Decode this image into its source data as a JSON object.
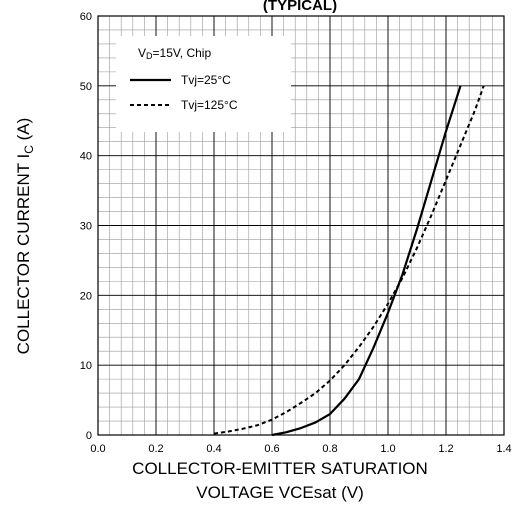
{
  "chart_data": {
    "type": "line",
    "title": "(TYPICAL)",
    "xlabel_line1": "COLLECTOR-EMITTER SATURATION",
    "xlabel_line2": "VOLTAGE VCEsat (V)",
    "ylabel": "COLLECTOR CURRENT I",
    "ylabel_sub": "C",
    "ylabel_unit": " (A)",
    "xlim": [
      0,
      1.4
    ],
    "ylim": [
      0,
      60
    ],
    "x_ticks": [
      0.0,
      0.2,
      0.4,
      0.6,
      0.8,
      1.0,
      1.2,
      1.4
    ],
    "x_tick_labels": [
      "0.0",
      "0.2",
      "0.4",
      "0.6",
      "0.8",
      "1.0",
      "1.2",
      "1.4"
    ],
    "y_ticks": [
      0,
      10,
      20,
      30,
      40,
      50,
      60
    ],
    "y_tick_labels": [
      "0",
      "10",
      "20",
      "30",
      "40",
      "50",
      "60"
    ],
    "grid": true,
    "legend": {
      "placement": "top-left",
      "header_main": "V",
      "header_sub": "D",
      "header_rest": "=15V, Chip"
    },
    "series": [
      {
        "name": "Tvj=25°C",
        "style": "solid",
        "color": "#000000",
        "points": [
          [
            0.6,
            0.0
          ],
          [
            0.65,
            0.4
          ],
          [
            0.7,
            1.0
          ],
          [
            0.75,
            1.8
          ],
          [
            0.8,
            3.0
          ],
          [
            0.85,
            5.2
          ],
          [
            0.9,
            8.0
          ],
          [
            0.95,
            12.5
          ],
          [
            1.0,
            17.5
          ],
          [
            1.05,
            23.0
          ],
          [
            1.1,
            29.5
          ],
          [
            1.15,
            36.5
          ],
          [
            1.2,
            43.5
          ],
          [
            1.25,
            50.0
          ]
        ]
      },
      {
        "name": "Tvj=125°C",
        "style": "dashed",
        "color": "#000000",
        "points": [
          [
            0.4,
            0.2
          ],
          [
            0.45,
            0.5
          ],
          [
            0.5,
            0.9
          ],
          [
            0.55,
            1.4
          ],
          [
            0.6,
            2.2
          ],
          [
            0.65,
            3.3
          ],
          [
            0.7,
            4.6
          ],
          [
            0.75,
            6.0
          ],
          [
            0.8,
            7.8
          ],
          [
            0.85,
            10.0
          ],
          [
            0.9,
            12.6
          ],
          [
            0.95,
            15.5
          ],
          [
            1.0,
            18.8
          ],
          [
            1.05,
            22.5
          ],
          [
            1.1,
            26.8
          ],
          [
            1.15,
            31.5
          ],
          [
            1.2,
            36.5
          ],
          [
            1.25,
            41.5
          ],
          [
            1.3,
            46.5
          ],
          [
            1.33,
            50.0
          ]
        ]
      }
    ]
  }
}
